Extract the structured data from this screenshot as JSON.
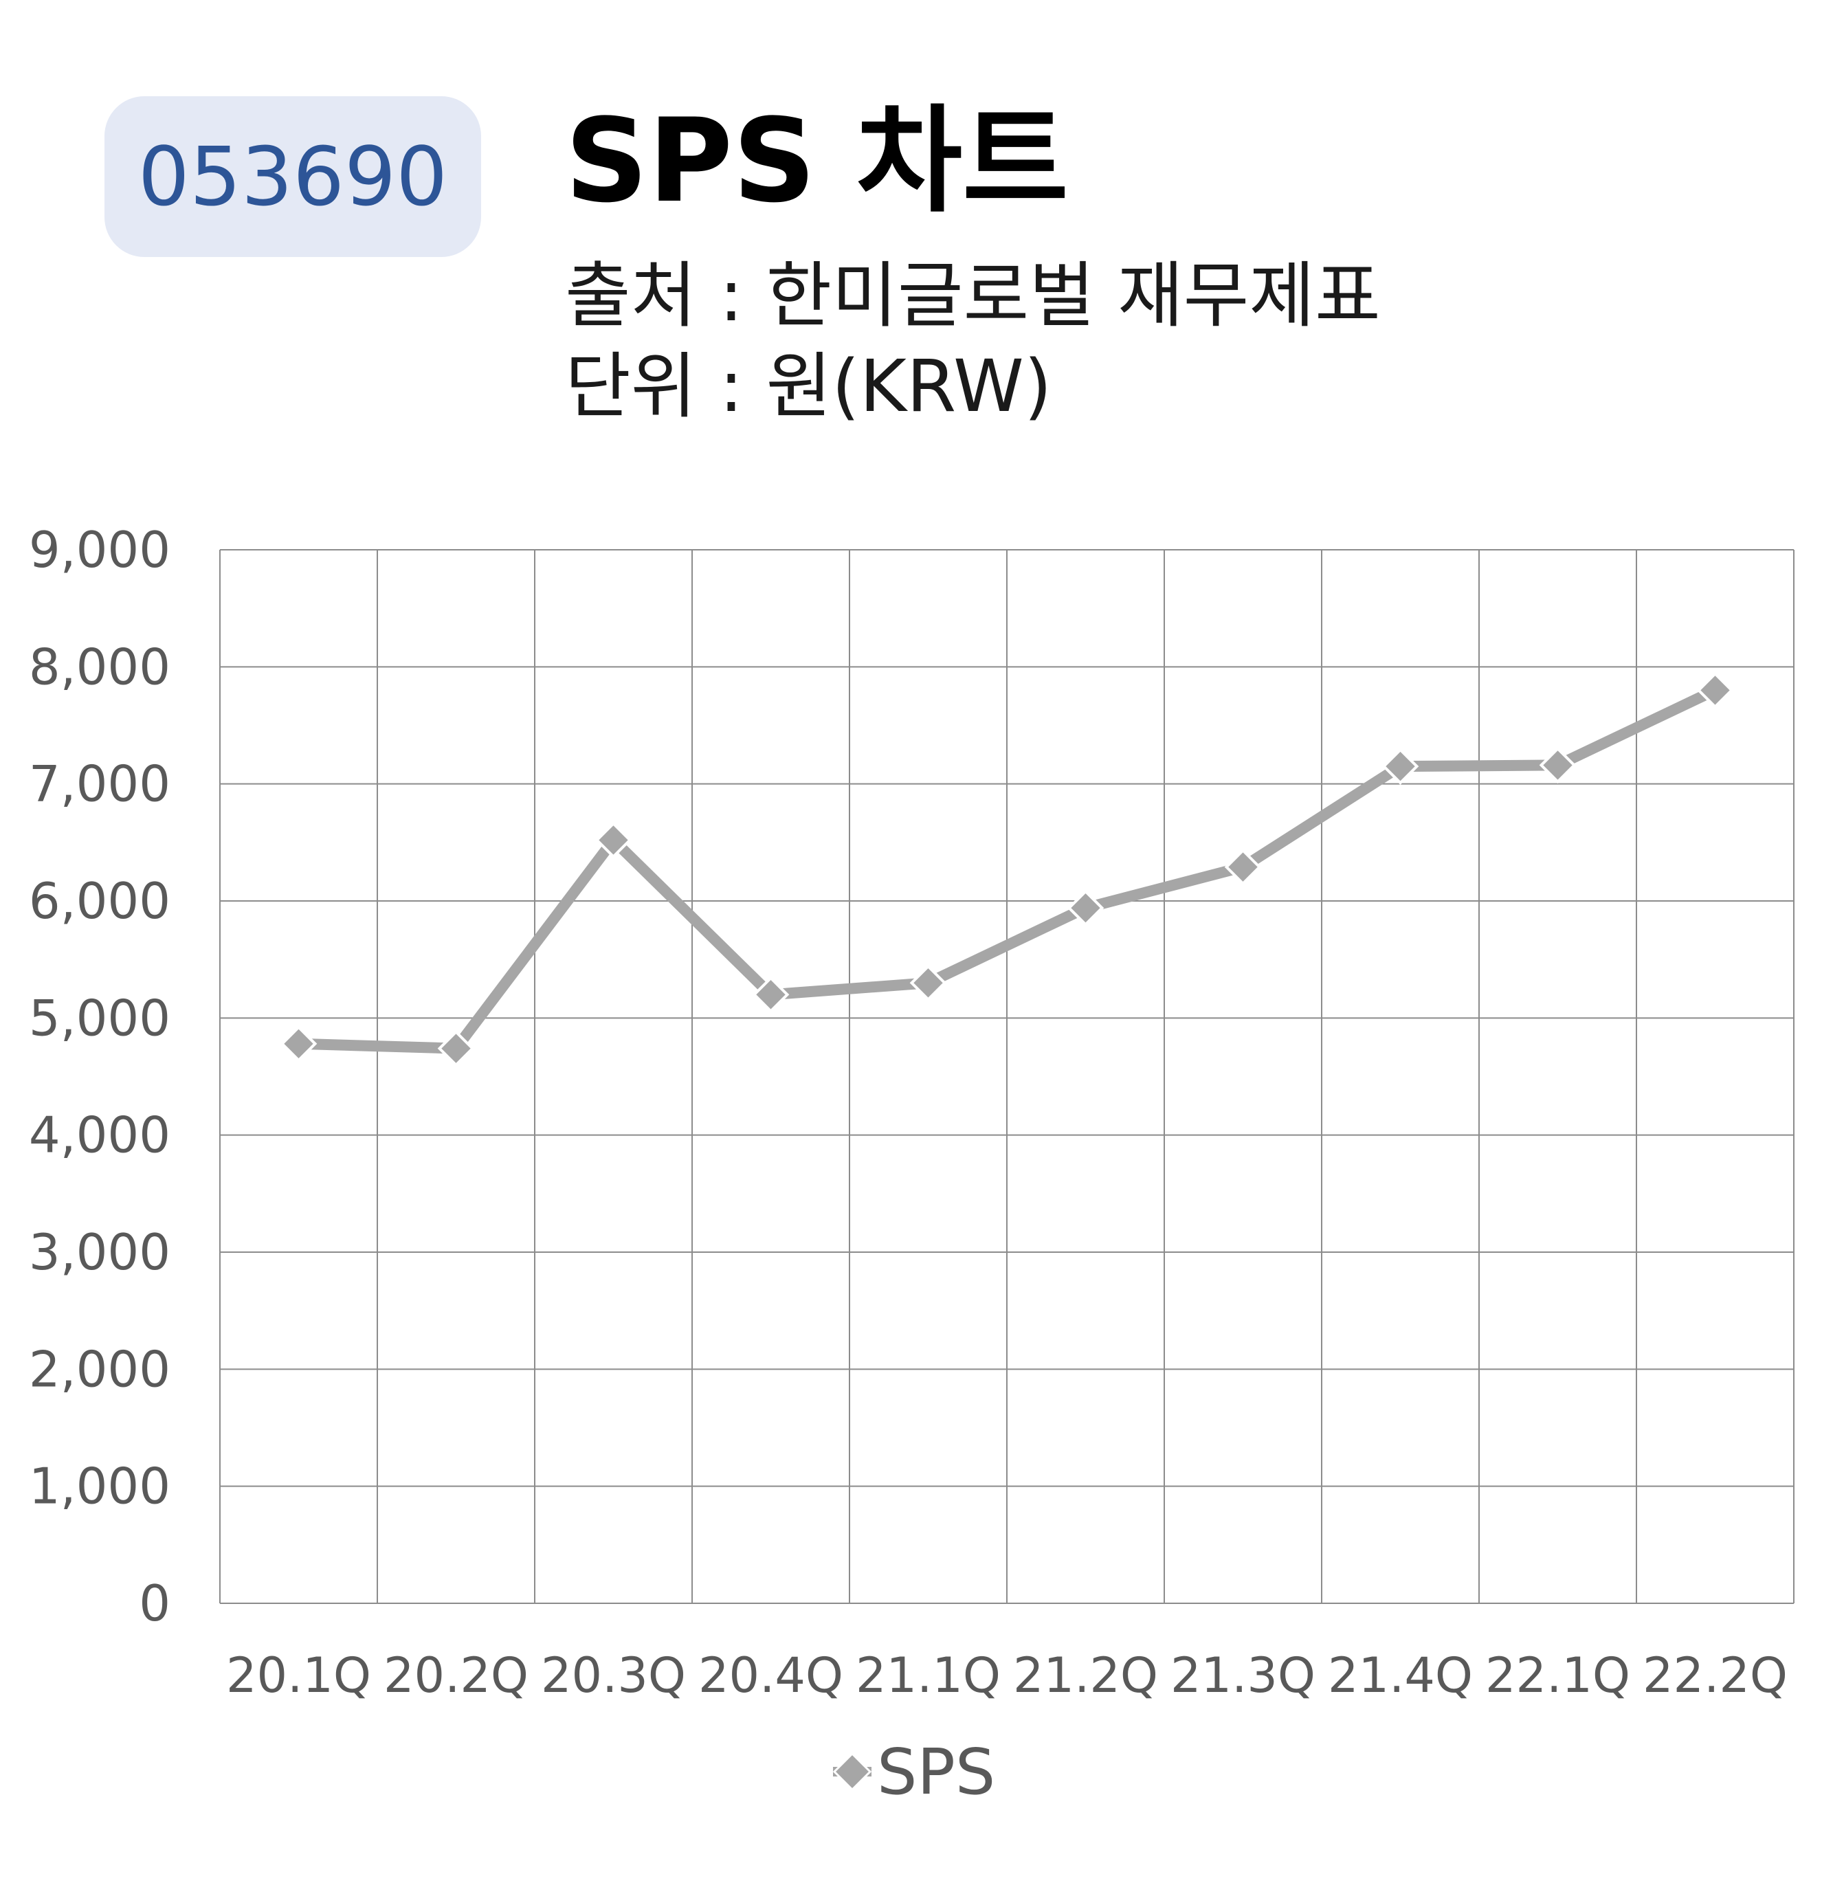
{
  "header": {
    "code": "053690",
    "title": "SPS 차트",
    "source": "출처 : 한미글로벌 재무제표",
    "unit": "단위 : 원(KRW)"
  },
  "colors": {
    "badge_bg": "#e4e9f5",
    "badge_text": "#2d5597",
    "series": "#a6a6a6",
    "grid": "#8c8c8c",
    "tick_text": "#595959"
  },
  "chart_data": {
    "type": "line",
    "title": "SPS 차트",
    "categories": [
      "20.1Q",
      "20.2Q",
      "20.3Q",
      "20.4Q",
      "21.1Q",
      "21.2Q",
      "21.3Q",
      "21.4Q",
      "22.1Q",
      "22.2Q"
    ],
    "series": [
      {
        "name": "SPS",
        "values": [
          4780,
          4740,
          6520,
          5200,
          5300,
          5940,
          6290,
          7150,
          7160,
          7800
        ],
        "marker": "diamond"
      }
    ],
    "ylim": [
      0,
      9000
    ],
    "yticks": [
      0,
      1000,
      2000,
      3000,
      4000,
      5000,
      6000,
      7000,
      8000,
      9000
    ],
    "ytick_labels": [
      "0",
      "1,000",
      "2,000",
      "3,000",
      "4,000",
      "5,000",
      "6,000",
      "7,000",
      "8,000",
      "9,000"
    ],
    "grid": true,
    "legend": "bottom-center"
  }
}
